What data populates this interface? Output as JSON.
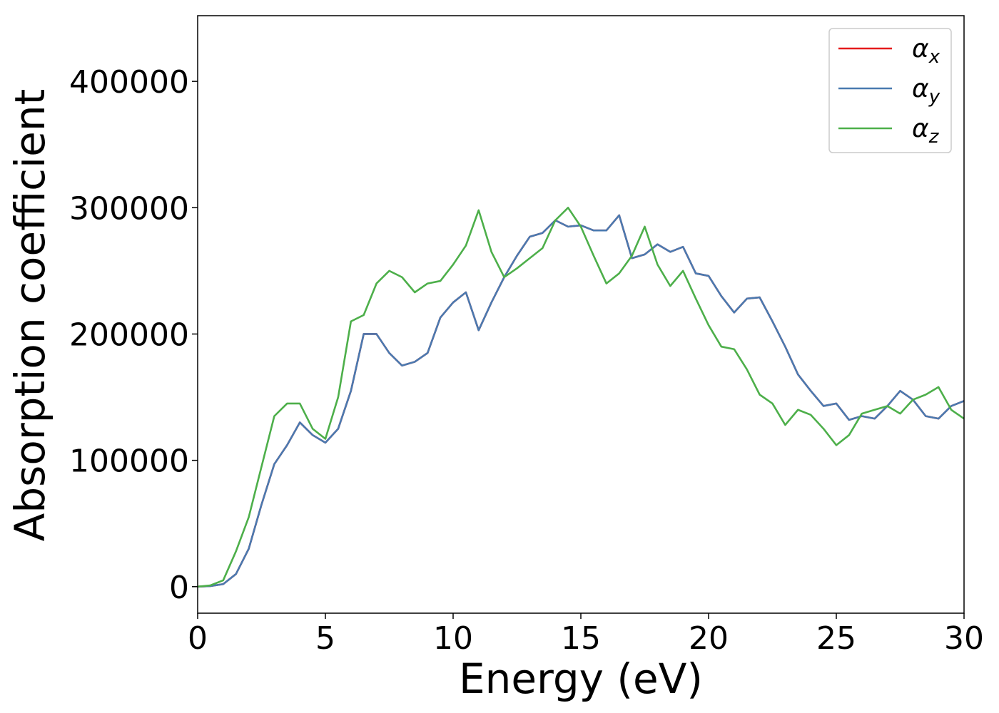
{
  "chart_data": {
    "type": "line",
    "xlabel": "Energy (eV)",
    "ylabel": "Absorption coefficient",
    "x": [
      0,
      0.5,
      1,
      1.5,
      2,
      2.5,
      3,
      3.5,
      4,
      4.5,
      5,
      5.5,
      6,
      6.5,
      7,
      7.5,
      8,
      8.5,
      9,
      9.5,
      10,
      10.5,
      11,
      11.5,
      12,
      12.5,
      13,
      13.5,
      14,
      14.5,
      15,
      15.5,
      16,
      16.5,
      17,
      17.5,
      18,
      18.5,
      19,
      19.5,
      20,
      20.5,
      21,
      21.5,
      22,
      22.5,
      23,
      23.5,
      24,
      24.5,
      25,
      25.5,
      26,
      26.5,
      27,
      27.5,
      28,
      28.5,
      29,
      29.5,
      30
    ],
    "series": [
      {
        "name": "αx",
        "color": "#e41a1c",
        "values": [
          0,
          500,
          2000,
          10000,
          30000,
          65000,
          97000,
          112000,
          130000,
          120000,
          114000,
          125000,
          155000,
          200000,
          200000,
          185000,
          175000,
          178000,
          185000,
          213000,
          225000,
          233000,
          203000,
          225000,
          245000,
          262000,
          277000,
          280000,
          290000,
          285000,
          286000,
          282000,
          282000,
          294000,
          260000,
          263000,
          271000,
          265000,
          269000,
          248000,
          246000,
          230000,
          217000,
          228000,
          229000,
          210000,
          190000,
          168000,
          155000,
          143000,
          145000,
          132000,
          135000,
          133000,
          143000,
          155000,
          148000,
          135000,
          133000,
          143000,
          147000
        ]
      },
      {
        "name": "αy",
        "color": "#4a7ab0",
        "values": [
          0,
          500,
          2000,
          10000,
          30000,
          65000,
          97000,
          112000,
          130000,
          120000,
          114000,
          125000,
          155000,
          200000,
          200000,
          185000,
          175000,
          178000,
          185000,
          213000,
          225000,
          233000,
          203000,
          225000,
          245000,
          262000,
          277000,
          280000,
          290000,
          285000,
          286000,
          282000,
          282000,
          294000,
          260000,
          263000,
          271000,
          265000,
          269000,
          248000,
          246000,
          230000,
          217000,
          228000,
          229000,
          210000,
          190000,
          168000,
          155000,
          143000,
          145000,
          132000,
          135000,
          133000,
          143000,
          155000,
          148000,
          135000,
          133000,
          143000,
          147000
        ]
      },
      {
        "name": "αz",
        "color": "#4daf4a",
        "values": [
          0,
          1000,
          5000,
          28000,
          55000,
          95000,
          135000,
          145000,
          145000,
          125000,
          117000,
          150000,
          210000,
          215000,
          240000,
          250000,
          245000,
          233000,
          240000,
          242000,
          255000,
          270000,
          298000,
          265000,
          245000,
          252000,
          260000,
          268000,
          290000,
          300000,
          285000,
          262000,
          240000,
          248000,
          262000,
          285000,
          255000,
          238000,
          250000,
          228000,
          207000,
          190000,
          188000,
          172000,
          152000,
          145000,
          128000,
          140000,
          136000,
          125000,
          112000,
          120000,
          137000,
          140000,
          143000,
          137000,
          148000,
          152000,
          158000,
          140000,
          133000
        ]
      }
    ],
    "xlim": [
      0,
      30
    ],
    "xticks": [
      0,
      5,
      10,
      15,
      20,
      25,
      30
    ],
    "ylim": [
      -21000,
      452000
    ],
    "yticks": [
      0,
      100000,
      200000,
      300000,
      400000
    ],
    "grid": false,
    "legend": "upper right"
  }
}
